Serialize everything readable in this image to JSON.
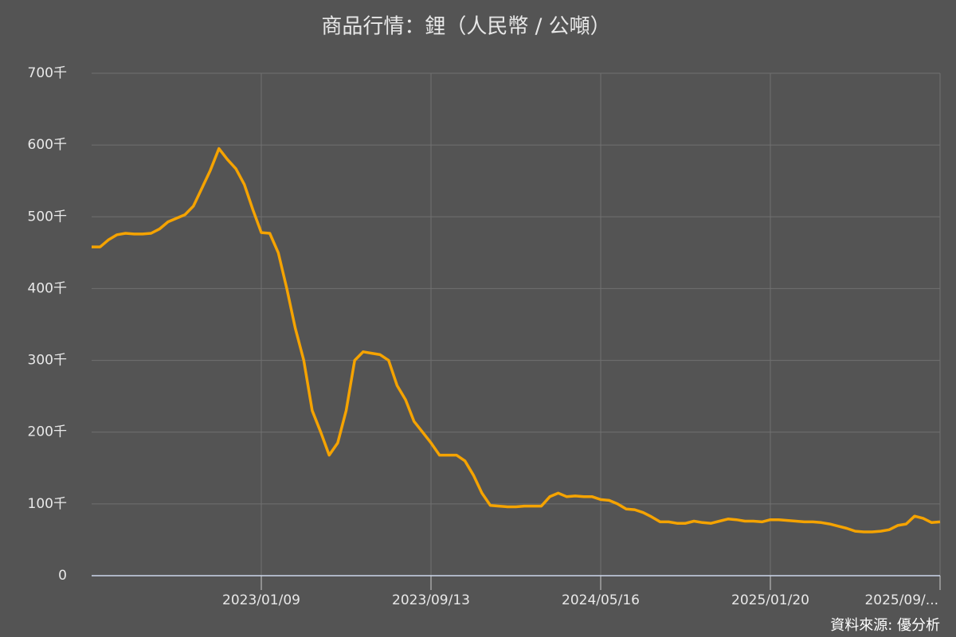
{
  "chart_data": {
    "type": "line",
    "title": "商品行情：鋰（人民幣 / 公噸）",
    "source": "資料來源: 優分析",
    "categories": [
      null,
      null,
      null,
      null,
      null,
      null,
      null,
      null,
      null,
      null,
      null,
      null,
      null,
      null,
      null,
      null,
      null,
      null,
      null,
      null,
      "2023/01/09",
      null,
      null,
      null,
      null,
      null,
      null,
      null,
      null,
      null,
      null,
      null,
      null,
      null,
      null,
      null,
      null,
      null,
      null,
      null,
      "2023/09/13",
      null,
      null,
      null,
      null,
      null,
      null,
      null,
      null,
      null,
      null,
      null,
      null,
      null,
      null,
      null,
      null,
      null,
      null,
      null,
      "2024/05/16",
      null,
      null,
      null,
      null,
      null,
      null,
      null,
      null,
      null,
      null,
      null,
      null,
      null,
      null,
      null,
      null,
      null,
      null,
      null,
      "2025/01/20",
      null,
      null,
      null,
      null,
      null,
      null,
      null,
      null,
      null,
      null,
      null,
      null,
      null,
      null,
      null,
      null,
      null,
      null,
      null,
      "2025/09/..."
    ],
    "series": [
      {
        "name": "鋰",
        "color": "#f5a300",
        "values": [
          458,
          458,
          468,
          475,
          477,
          476,
          476,
          477,
          483,
          493,
          498,
          503,
          515,
          540,
          565,
          595,
          580,
          567,
          545,
          510,
          478,
          477,
          450,
          400,
          345,
          300,
          230,
          200,
          168,
          185,
          230,
          300,
          312,
          310,
          308,
          300,
          265,
          245,
          215,
          200,
          185,
          168,
          168,
          168,
          160,
          140,
          115,
          98,
          97,
          96,
          96,
          97,
          97,
          97,
          110,
          115,
          110,
          111,
          110,
          110,
          106,
          105,
          100,
          93,
          92,
          88,
          82,
          75,
          75,
          73,
          73,
          76,
          74,
          73,
          76,
          79,
          78,
          76,
          76,
          75,
          78,
          78,
          77,
          76,
          75,
          75,
          74,
          72,
          69,
          66,
          62,
          61,
          61,
          62,
          64,
          70,
          72,
          83,
          80,
          74,
          75
        ]
      }
    ],
    "ylim": [
      0,
      700
    ],
    "yticks": [
      0,
      {
        "value": 100,
        "label": "100千"
      },
      {
        "value": 200,
        "label": "200千"
      },
      {
        "value": 300,
        "label": "300千"
      },
      {
        "value": 400,
        "label": "400千"
      },
      {
        "value": 500,
        "label": "500千"
      },
      {
        "value": 600,
        "label": "600千"
      },
      {
        "value": 700,
        "label": "700千"
      }
    ],
    "grid": true
  }
}
